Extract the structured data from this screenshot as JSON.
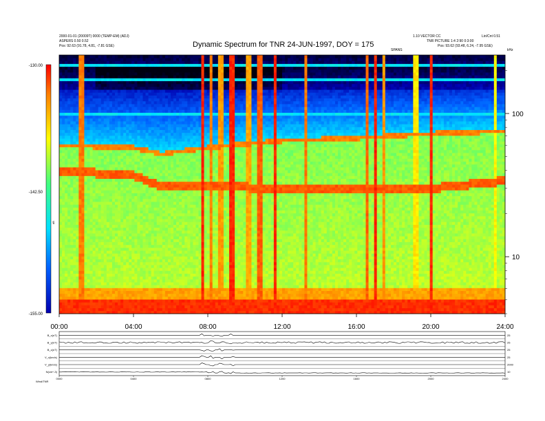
{
  "header": {
    "title": "Dynamic Spectrum for TNR 24-JUN-1997, DOY = 175",
    "left_line1": "2000-01-01 (20009T) 0000 (TEMP-EM) (ADJ)",
    "left_line2": "ASPERS 0.50 0.52",
    "left_line3": "Pos: 92.63 (91.78, 4.81, -7.81 GSE)",
    "right_line1": "1.10 VECTOR CC",
    "right_line2": "Lin/Cnt 0.51",
    "right_line3": "Pos: 93.62 (93.48, 6.24, -7.95 GSE)",
    "right_line4": "TNR PICTURE 1:4 2:90 0:3:00",
    "center_small": "SPANS",
    "khz_label": "kHz"
  },
  "chart_data": [
    {
      "type": "heatmap",
      "title": "Dynamic Spectrum for TNR 24-JUN-1997, DOY = 175",
      "x_ticks": [
        "00:00",
        "04:00",
        "08:00",
        "12:00",
        "16:00",
        "20:00",
        "24:00"
      ],
      "x_range_hours": [
        0,
        24
      ],
      "y_scale": "log",
      "y_range_khz": [
        4,
        256
      ],
      "y_ticks": [
        "100",
        "10"
      ],
      "y_tick_values": [
        100,
        10
      ],
      "colorbar_ticks": [
        "-130.00",
        "-142.50",
        "-155.00"
      ],
      "colorbar_values": [
        -130,
        -142.5,
        -155
      ],
      "colorbar_label": "dB",
      "colormap": [
        "#000010",
        "#0000b0",
        "#0060ff",
        "#00e0ff",
        "#40ff80",
        "#ffff00",
        "#ff8000",
        "#ff0000"
      ],
      "bright_lines_khz": [
        220,
        170,
        100
      ],
      "upper_band_khz": [
        [
          0,
          62
        ],
        [
          4,
          60
        ],
        [
          5.5,
          54
        ],
        [
          8,
          60
        ],
        [
          12,
          67
        ],
        [
          16,
          70
        ],
        [
          20,
          75
        ],
        [
          24,
          78
        ]
      ],
      "lower_band_khz": [
        [
          0,
          40
        ],
        [
          4,
          37
        ],
        [
          5.5,
          31
        ],
        [
          8,
          32
        ],
        [
          11,
          30
        ],
        [
          16,
          30
        ],
        [
          20,
          30
        ],
        [
          24,
          34
        ]
      ],
      "burst_hours": [
        1.2,
        7.7,
        8.2,
        8.7,
        9.3,
        10.2,
        10.8,
        11.6,
        13.3,
        16.6,
        17.0,
        17.5,
        19.2,
        20.0,
        23.5
      ]
    },
    {
      "type": "line",
      "series": [
        {
          "name": "B_x(nT)",
          "right": "25",
          "pattern": "flat"
        },
        {
          "name": "B_y(nT)",
          "right": "25",
          "pattern": "noisy"
        },
        {
          "name": "B_z(nT)",
          "right": "25",
          "pattern": "flat"
        },
        {
          "name": "V_x(km/s)",
          "right": "25",
          "pattern": "flat"
        },
        {
          "name": "V_y(km/s)",
          "right": "2000",
          "pattern": "flat"
        },
        {
          "name": "N(cm^-3)",
          "right": "10",
          "pattern": "drift"
        }
      ],
      "x_ticks": [
        "0000",
        "0400",
        "0800",
        "1200",
        "1600",
        "2000",
        "2400"
      ],
      "footer_left": "Wind/TNR"
    }
  ]
}
